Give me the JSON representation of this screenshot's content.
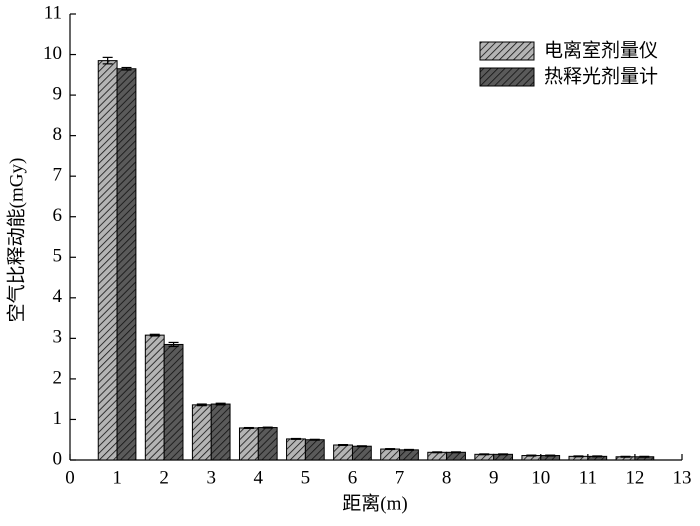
{
  "chart_data": {
    "type": "bar",
    "xlabel": "距离(m)",
    "ylabel": "空气比释动能(mGy)",
    "x": [
      1,
      2,
      3,
      4,
      5,
      6,
      7,
      8,
      9,
      10,
      11,
      12
    ],
    "series": [
      {
        "name": "电离室剂量仪",
        "color": "#b4b4b4",
        "values": [
          9.85,
          3.08,
          1.36,
          0.79,
          0.52,
          0.37,
          0.27,
          0.19,
          0.14,
          0.11,
          0.09,
          0.08
        ],
        "errors": [
          0.08,
          0.02,
          0.02,
          0.01,
          0.01,
          0.01,
          0.01,
          0.01,
          0.01,
          0.01,
          0.01,
          0.01
        ]
      },
      {
        "name": "热释光剂量计",
        "color": "#5a5a5a",
        "values": [
          9.65,
          2.85,
          1.38,
          0.8,
          0.5,
          0.34,
          0.25,
          0.19,
          0.14,
          0.11,
          0.09,
          0.08
        ],
        "errors": [
          0.03,
          0.05,
          0.02,
          0.01,
          0.01,
          0.01,
          0.01,
          0.01,
          0.01,
          0.01,
          0.01,
          0.01
        ]
      }
    ],
    "xlim": [
      0,
      13
    ],
    "xticks": [
      0,
      1,
      2,
      3,
      4,
      5,
      6,
      7,
      8,
      9,
      10,
      11,
      12,
      13
    ],
    "ylim": [
      0,
      11
    ],
    "yticks": [
      0,
      1,
      2,
      3,
      4,
      5,
      6,
      7,
      8,
      9,
      10,
      11
    ],
    "grid": false,
    "legend": "upper right"
  }
}
